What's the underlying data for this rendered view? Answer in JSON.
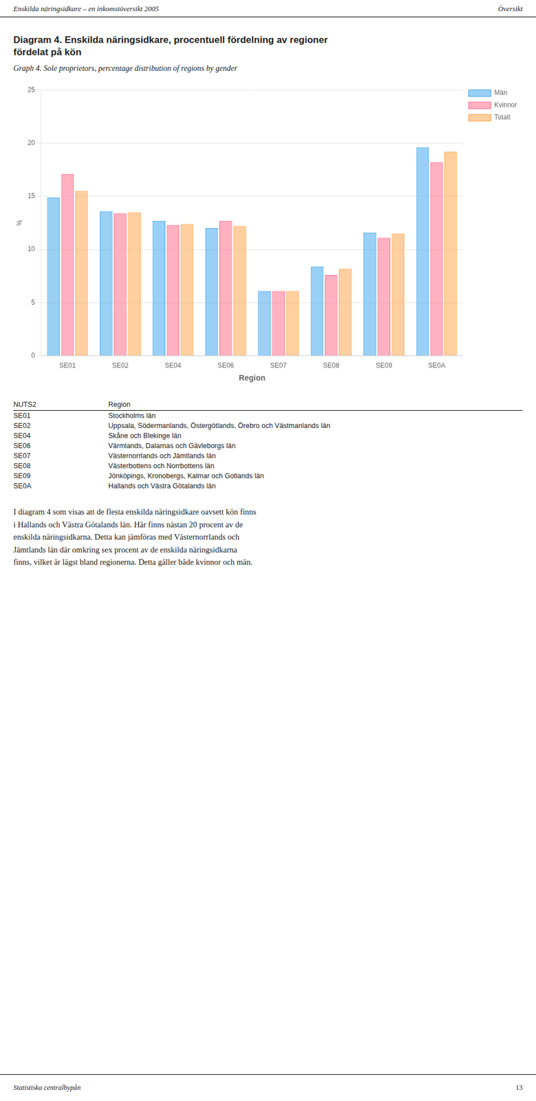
{
  "header": {
    "left": "Enskilda näringsidkare – en inkomstöversikt 2005",
    "right": "Översikt"
  },
  "chart_data": {
    "type": "bar",
    "title": "Diagram 4. Enskilda näringsidkare, procentuell fördelning av regioner\nfördelat på kön",
    "subtitle": "Graph 4. Sole proprietors, percentage distribution of regions by gender",
    "x_label": "Region",
    "y_label": "%",
    "categories": [
      "SE01",
      "SE02",
      "SE04",
      "SE06",
      "SE07",
      "SE08",
      "SE09",
      "SE0A"
    ],
    "series": [
      {
        "name": "Män",
        "values": [
          14.9,
          13.6,
          12.7,
          12.0,
          6.1,
          8.4,
          11.6,
          19.6
        ]
      },
      {
        "name": "Kvinnor",
        "values": [
          17.1,
          13.4,
          12.3,
          12.7,
          6.1,
          7.6,
          11.1,
          18.2
        ]
      },
      {
        "name": "Totalt",
        "values": [
          15.5,
          13.5,
          12.4,
          12.2,
          6.1,
          8.2,
          11.5,
          19.2
        ]
      }
    ],
    "ylim": [
      0,
      25
    ],
    "yticks": [
      0,
      5,
      10,
      15,
      20,
      25
    ],
    "grid": true,
    "legend": "right"
  },
  "table": {
    "columns": [
      "NUTS2",
      "Region"
    ],
    "rows": [
      [
        "SE01",
        "Stockholms län"
      ],
      [
        "SE02",
        "Uppsala, Södermanlands, Östergötlands, Örebro och Västmanlands län"
      ],
      [
        "SE04",
        "Skåne och Blekinge län"
      ],
      [
        "SE06",
        "Värmlands, Dalarnas och Gävleborgs län"
      ],
      [
        "SE07",
        "Västernorrlands och Jämtlands län"
      ],
      [
        "SE08",
        "Västerbottens och Norrbottens län"
      ],
      [
        "SE09",
        "Jönköpings, Kronobergs, Kalmar och Gotlands län"
      ],
      [
        "SE0A",
        "Hallands och Västra Götalands län"
      ]
    ]
  },
  "body_text": "I diagram 4 som visas att de flesta enskilda näringsidkare oavsett kön finns\ni Hallands och Västra Götalands län. Här finns nästan 20 procent av de\nenskilda näringsidkarna. Detta kan jämföras med Västernorrlands och\nJämtlands län där omkring sex procent av de enskilda näringsidkarna\nfinns, vilket är lägst bland regionerna. Detta gäller både kvinnor och män.",
  "footer": {
    "left": "Statistiska centralbyрån",
    "right": "13"
  }
}
